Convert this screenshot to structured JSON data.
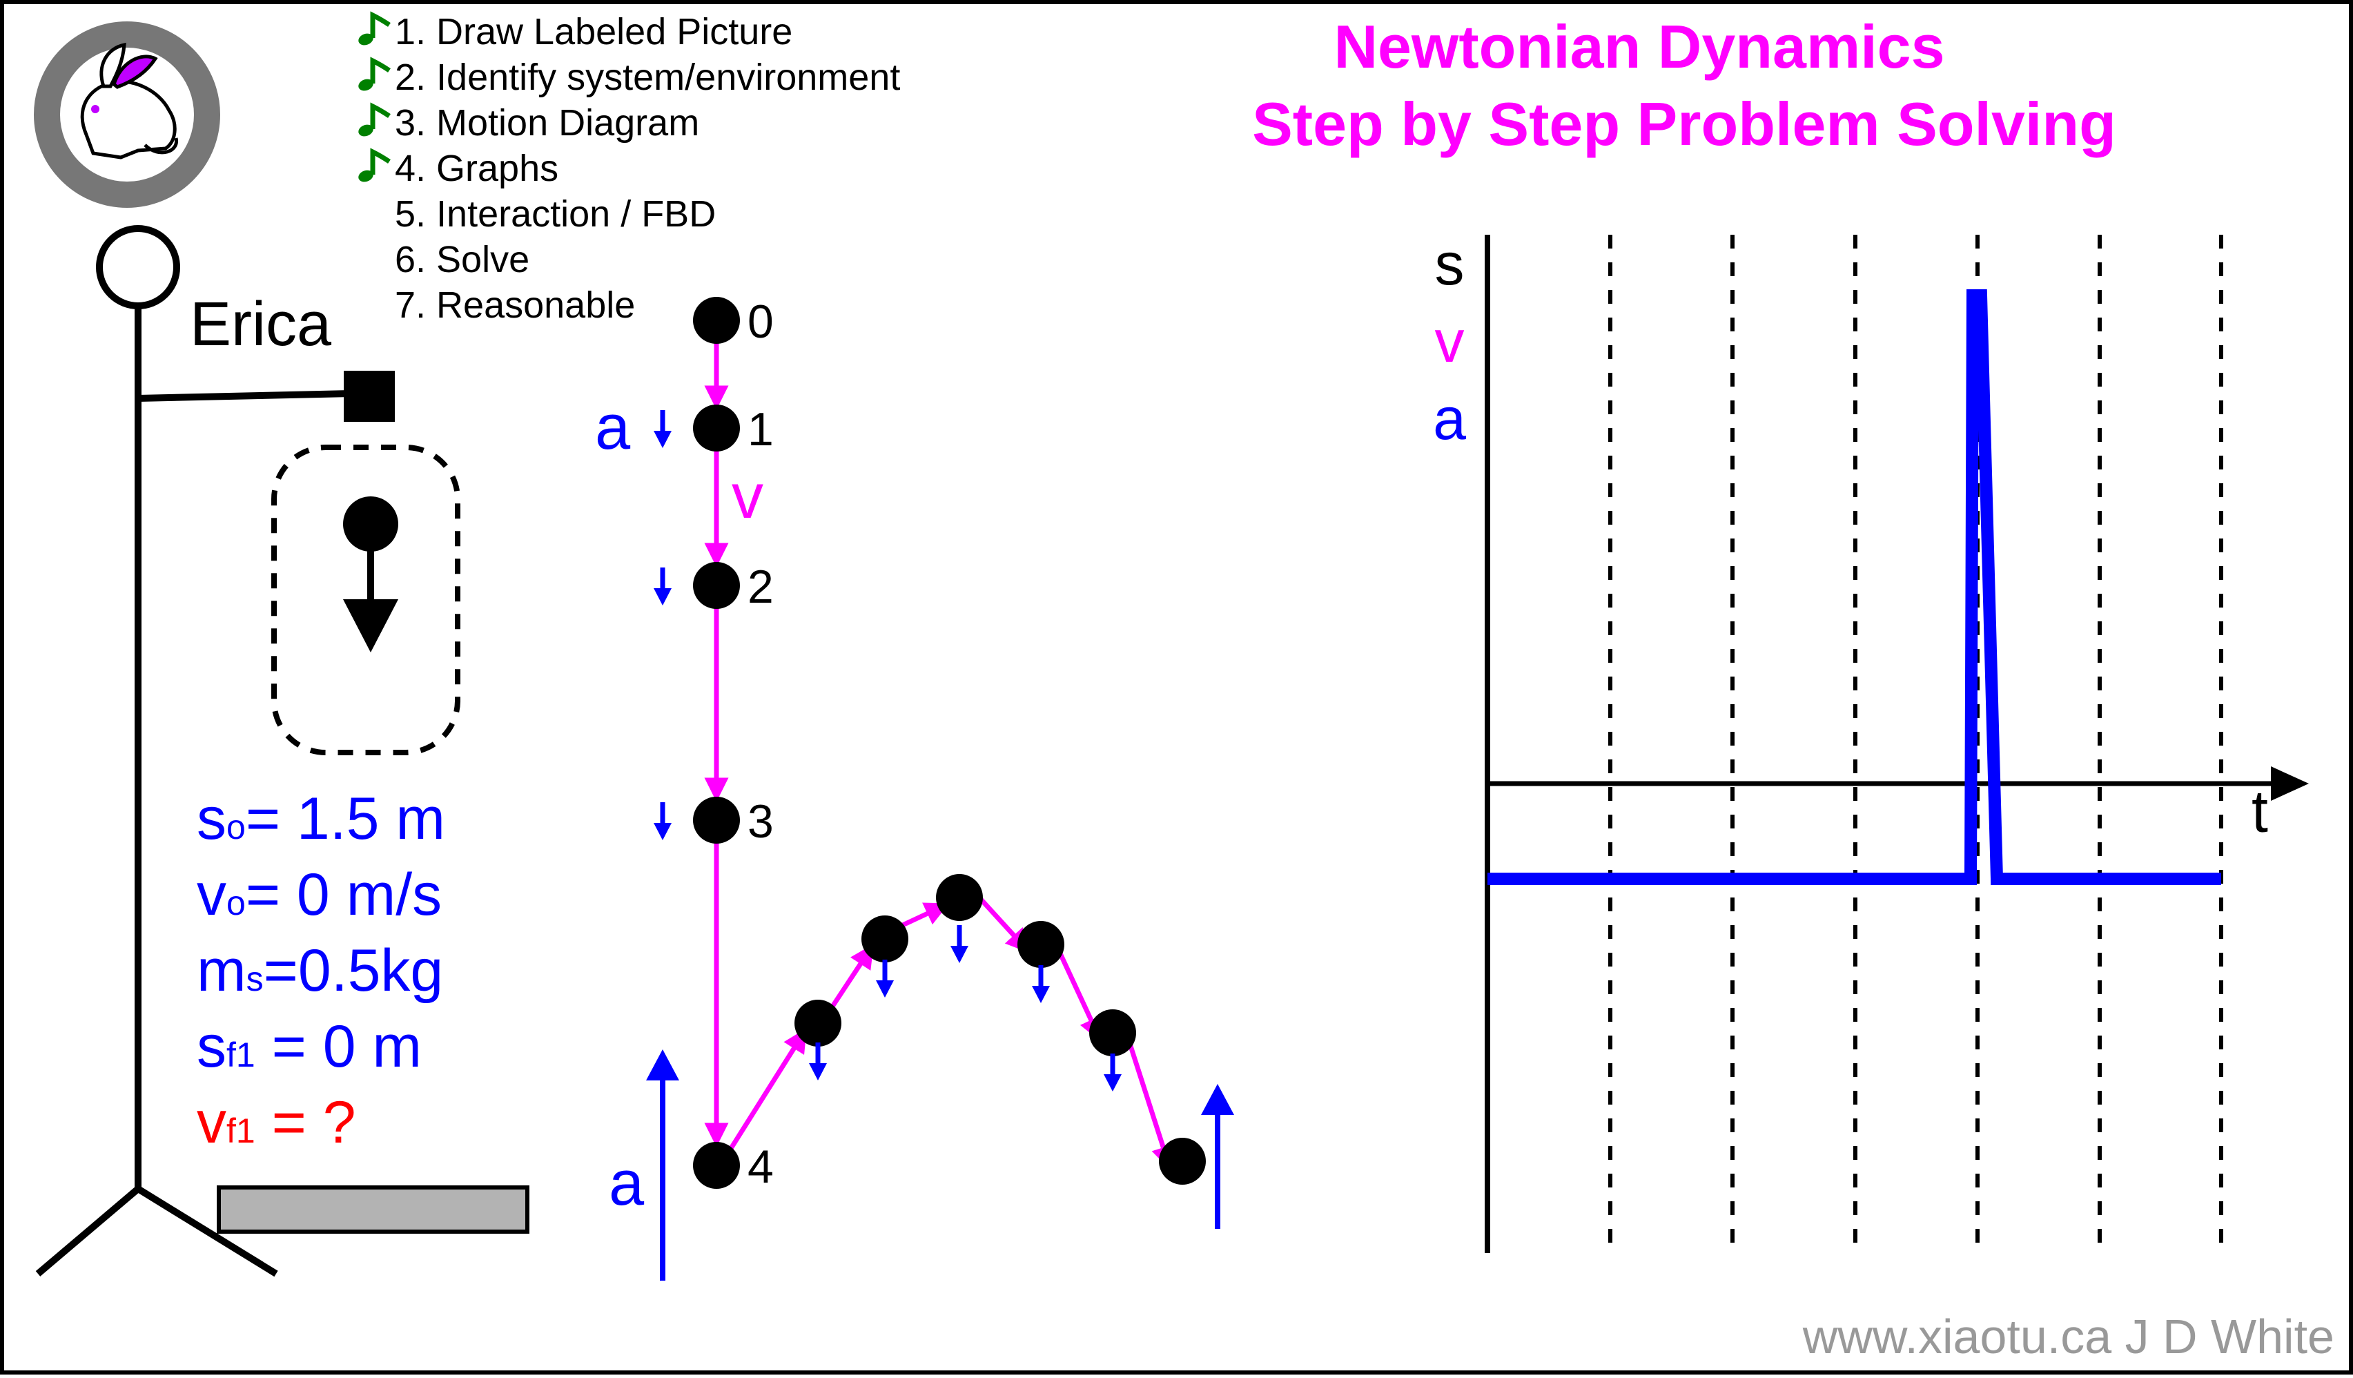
{
  "title": {
    "line1": "Newtonian Dynamics",
    "line2": "Step by Step Problem Solving"
  },
  "steps": [
    {
      "label": "1. Draw Labeled Picture",
      "done": true
    },
    {
      "label": "2. Identify system/environment",
      "done": true
    },
    {
      "label": "3. Motion Diagram",
      "done": true
    },
    {
      "label": "4. Graphs",
      "done": true
    },
    {
      "label": "5. Interaction / FBD",
      "done": false
    },
    {
      "label": "6. Solve",
      "done": false
    },
    {
      "label": "7. Reasonable",
      "done": false
    }
  ],
  "step_done_icon": "music-note-icon",
  "logo_icon": "rabbit-icon",
  "person": {
    "name": "Erica"
  },
  "knowns": [
    {
      "sym": "s",
      "sub": "o",
      "rest": "= 1.5 m",
      "color": "#0000ff"
    },
    {
      "sym": "v",
      "sub": "o",
      "rest": "= 0 m/s",
      "color": "#0000ff"
    },
    {
      "sym": "m",
      "sub": "s",
      "rest": "=0.5kg",
      "color": "#0000ff"
    },
    {
      "sym": "s",
      "sub": "f1",
      "rest": " = 0 m",
      "color": "#0000ff"
    },
    {
      "sym": "v",
      "sub": "f1",
      "rest": " = ?",
      "color": "#ff0000"
    }
  ],
  "motion": {
    "frame_labels": [
      "0",
      "1",
      "2",
      "3",
      "4"
    ],
    "accel_label": "a",
    "vel_label": "v",
    "bounce_accel_label": "a"
  },
  "graph": {
    "labels": [
      "s",
      "v",
      "a"
    ],
    "label_colors": [
      "#000000",
      "#ff00ff",
      "#0000ff"
    ],
    "time_label": "t"
  },
  "credit": "www.xiaotu.ca J D White",
  "colors": {
    "title": "#ff00ff",
    "blue": "#0000ff",
    "magenta": "#ff00ff",
    "red": "#ff0000",
    "check": "#008000",
    "credit": "#999999"
  }
}
